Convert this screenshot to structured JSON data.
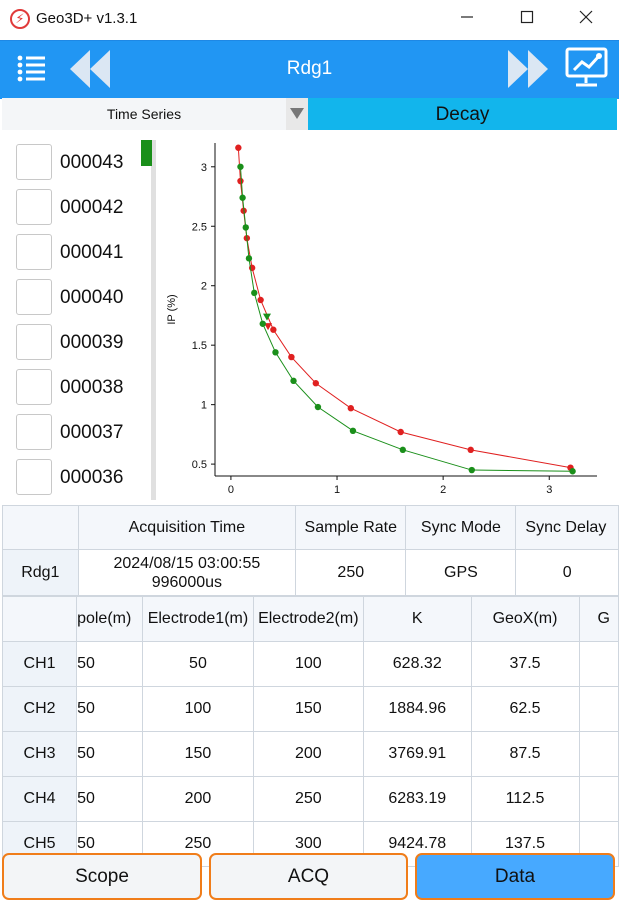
{
  "window": {
    "title": "Geo3D+ v1.3.1",
    "app_icon_glyph": "⚡"
  },
  "header": {
    "title": "Rdg1",
    "color": "#2196f3"
  },
  "tabs": {
    "time_series_label": "Time Series",
    "decay_label": "Decay",
    "decay_color": "#12b5ec"
  },
  "file_list": {
    "items": [
      "000043",
      "000042",
      "000041",
      "000040",
      "000039",
      "000038",
      "000037",
      "000036"
    ],
    "scroll_thumb_color": "#1a8f1a"
  },
  "chart_data": {
    "type": "line",
    "title": "",
    "xlabel": "",
    "ylabel": "IP (%)",
    "xlim": [
      -0.15,
      3.45
    ],
    "ylim": [
      0.4,
      3.2
    ],
    "xticks": [
      0,
      1,
      2,
      3
    ],
    "yticks": [
      0.5,
      1,
      1.5,
      2,
      2.5,
      3
    ],
    "grid": false,
    "series": [
      {
        "color": "#e02020",
        "x": [
          0.07,
          0.09,
          0.12,
          0.15,
          0.2,
          0.28,
          0.4,
          0.57,
          0.8,
          1.13,
          1.6,
          2.26,
          3.2
        ],
        "y": [
          3.16,
          2.88,
          2.63,
          2.4,
          2.15,
          1.88,
          1.63,
          1.4,
          1.18,
          0.97,
          0.77,
          0.62,
          0.47
        ],
        "markers": [
          "circle",
          "circle",
          "circle",
          "circle",
          "circle",
          "circle",
          "circle",
          "circle",
          "circle",
          "circle",
          "circle",
          "circle",
          "circle"
        ],
        "triangle_points": {
          "x": [
            0.35
          ],
          "y": [
            1.66
          ]
        }
      },
      {
        "color": "#1a8f1a",
        "x": [
          0.09,
          0.11,
          0.14,
          0.17,
          0.22,
          0.3,
          0.42,
          0.59,
          0.82,
          1.15,
          1.62,
          2.27,
          3.22
        ],
        "y": [
          3.0,
          2.74,
          2.49,
          2.23,
          1.94,
          1.68,
          1.44,
          1.2,
          0.98,
          0.78,
          0.62,
          0.45,
          0.44
        ],
        "triangle_points": {
          "x": [
            0.34
          ],
          "y": [
            1.74
          ]
        }
      }
    ]
  },
  "info_table": {
    "headers": [
      "Acquisition Time",
      "Sample Rate",
      "Sync Mode",
      "Sync Delay"
    ],
    "row_label": "Rdg1",
    "acq_time_line1": "2024/08/15 03:00:55",
    "acq_time_line2": "996000us",
    "sample_rate": "250",
    "sync_mode": "GPS",
    "sync_delay": "0"
  },
  "channel_table": {
    "headers": [
      "pole(m)",
      "Electrode1(m)",
      "Electrode2(m)",
      "K",
      "GeoX(m)",
      "G"
    ],
    "rows": [
      {
        "label": "CH1",
        "cells": [
          "50",
          "50",
          "100",
          "628.32",
          "37.5",
          ""
        ]
      },
      {
        "label": "CH2",
        "cells": [
          "50",
          "100",
          "150",
          "1884.96",
          "62.5",
          ""
        ]
      },
      {
        "label": "CH3",
        "cells": [
          "50",
          "150",
          "200",
          "3769.91",
          "87.5",
          ""
        ]
      },
      {
        "label": "CH4",
        "cells": [
          "50",
          "200",
          "250",
          "6283.19",
          "112.5",
          ""
        ]
      },
      {
        "label": "CH5",
        "cells": [
          "50",
          "250",
          "300",
          "9424.78",
          "137.5",
          ""
        ]
      }
    ]
  },
  "bottom_nav": {
    "scope_label": "Scope",
    "acq_label": "ACQ",
    "data_label": "Data"
  }
}
